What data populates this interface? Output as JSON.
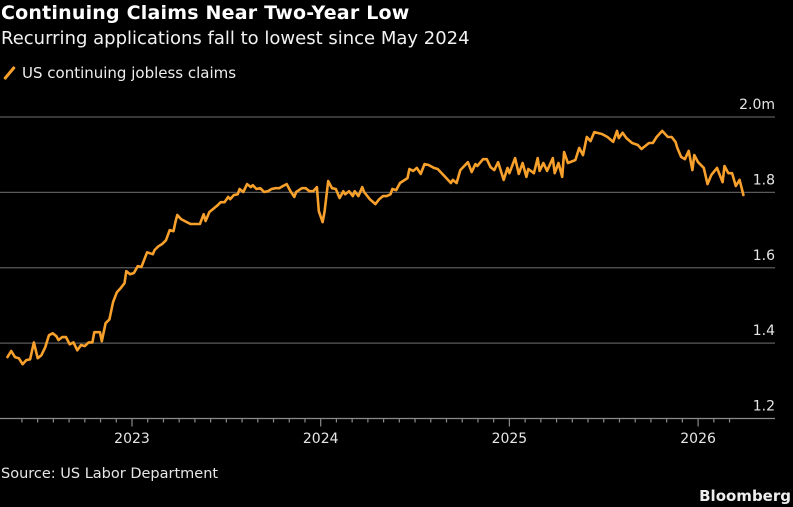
{
  "chart_data": {
    "type": "line",
    "title": "Continuing Claims Near Two-Year Low",
    "subtitle": "Recurring applications fall to lowest since May 2024",
    "xlabel": "",
    "ylabel": "",
    "ylim": [
      1.2,
      2.0
    ],
    "xlim": [
      2022.33,
      2026.4
    ],
    "yticks": [
      1.2,
      1.4,
      1.6,
      1.8,
      2.0
    ],
    "ytick_labels": [
      "1.2",
      "1.4",
      "1.6",
      "1.8",
      "2.0m"
    ],
    "xticks": [
      2023,
      2024,
      2025,
      2026
    ],
    "xtick_labels": [
      "2023",
      "2024",
      "2025",
      "2026"
    ],
    "grid": true,
    "legend_position": "top-left",
    "series": [
      {
        "name": "US continuing jobless claims",
        "color": "#f7a02c",
        "x": [
          2022.34,
          2022.36,
          2022.38,
          2022.4,
          2022.42,
          2022.44,
          2022.46,
          2022.48,
          2022.5,
          2022.52,
          2022.54,
          2022.56,
          2022.58,
          2022.6,
          2022.61,
          2022.63,
          2022.65,
          2022.67,
          2022.69,
          2022.71,
          2022.73,
          2022.75,
          2022.77,
          2022.79,
          2022.8,
          2022.83,
          2022.84,
          2022.86,
          2022.88,
          2022.9,
          2022.92,
          2022.94,
          2022.96,
          2022.97,
          2022.99,
          2023.01,
          2023.03,
          2023.05,
          2023.07,
          2023.08,
          2023.11,
          2023.12,
          2023.14,
          2023.16,
          2023.18,
          2023.2,
          2023.22,
          2023.23,
          2023.24,
          2023.26,
          2023.29,
          2023.31,
          2023.32,
          2023.34,
          2023.36,
          2023.38,
          2023.39,
          2023.41,
          2023.43,
          2023.45,
          2023.47,
          2023.49,
          2023.51,
          2023.52,
          2023.54,
          2023.56,
          2023.57,
          2023.59,
          2023.61,
          2023.63,
          2023.64,
          2023.66,
          2023.68,
          2023.7,
          2023.72,
          2023.74,
          2023.76,
          2023.78,
          2023.8,
          2023.82,
          2023.84,
          2023.86,
          2023.87,
          2023.9,
          2023.92,
          2023.94,
          2023.96,
          2023.98,
          2023.99,
          2024.01,
          2024.02,
          2024.04,
          2024.06,
          2024.08,
          2024.1,
          2024.12,
          2024.13,
          2024.15,
          2024.17,
          2024.18,
          2024.2,
          2024.22,
          2024.23,
          2024.26,
          2024.29,
          2024.31,
          2024.33,
          2024.35,
          2024.37,
          2024.38,
          2024.4,
          2024.42,
          2024.46,
          2024.47,
          2024.49,
          2024.51,
          2024.53,
          2024.55,
          2024.57,
          2024.6,
          2024.62,
          2024.65,
          2024.69,
          2024.7,
          2024.72,
          2024.74,
          2024.78,
          2024.8,
          2024.82,
          2024.83,
          2024.86,
          2024.88,
          2024.9,
          2024.92,
          2024.94,
          2024.97,
          2024.99,
          2025.0,
          2025.03,
          2025.05,
          2025.07,
          2025.09,
          2025.1,
          2025.13,
          2025.15,
          2025.16,
          2025.18,
          2025.2,
          2025.23,
          2025.24,
          2025.26,
          2025.28,
          2025.29,
          2025.31,
          2025.35,
          2025.37,
          2025.39,
          2025.41,
          2025.43,
          2025.45,
          2025.49,
          2025.52,
          2025.55,
          2025.57,
          2025.58,
          2025.6,
          2025.62,
          2025.65,
          2025.68,
          2025.7,
          2025.74,
          2025.76,
          2025.78,
          2025.81,
          2025.84,
          2025.86,
          2025.88,
          2025.89,
          2025.91,
          2025.93,
          2025.95,
          2025.97,
          2025.98,
          2026.0,
          2026.03,
          2026.05,
          2026.07,
          2026.1,
          2026.13,
          2026.14,
          2026.16,
          2026.18,
          2026.2,
          2026.22,
          2026.24
        ],
        "y": [
          1.363,
          1.379,
          1.363,
          1.36,
          1.344,
          1.355,
          1.357,
          1.402,
          1.36,
          1.368,
          1.389,
          1.421,
          1.426,
          1.418,
          1.408,
          1.416,
          1.416,
          1.397,
          1.402,
          1.381,
          1.395,
          1.392,
          1.402,
          1.402,
          1.429,
          1.429,
          1.405,
          1.453,
          1.463,
          1.509,
          1.535,
          1.546,
          1.559,
          1.591,
          1.583,
          1.586,
          1.604,
          1.602,
          1.628,
          1.641,
          1.636,
          1.647,
          1.657,
          1.663,
          1.673,
          1.7,
          1.697,
          1.721,
          1.74,
          1.729,
          1.721,
          1.716,
          1.716,
          1.716,
          1.716,
          1.742,
          1.724,
          1.748,
          1.756,
          1.764,
          1.774,
          1.774,
          1.788,
          1.782,
          1.793,
          1.795,
          1.809,
          1.801,
          1.822,
          1.814,
          1.819,
          1.809,
          1.811,
          1.801,
          1.803,
          1.809,
          1.811,
          1.811,
          1.817,
          1.822,
          1.803,
          1.788,
          1.801,
          1.811,
          1.811,
          1.803,
          1.803,
          1.814,
          1.75,
          1.721,
          1.748,
          1.83,
          1.811,
          1.809,
          1.785,
          1.803,
          1.795,
          1.803,
          1.79,
          1.803,
          1.79,
          1.814,
          1.801,
          1.782,
          1.769,
          1.782,
          1.79,
          1.79,
          1.795,
          1.809,
          1.806,
          1.825,
          1.838,
          1.862,
          1.857,
          1.865,
          1.849,
          1.875,
          1.873,
          1.865,
          1.862,
          1.846,
          1.825,
          1.833,
          1.825,
          1.859,
          1.88,
          1.854,
          1.875,
          1.87,
          1.888,
          1.888,
          1.867,
          1.859,
          1.88,
          1.833,
          1.865,
          1.851,
          1.891,
          1.849,
          1.878,
          1.841,
          1.862,
          1.851,
          1.891,
          1.857,
          1.878,
          1.857,
          1.891,
          1.851,
          1.878,
          1.841,
          1.907,
          1.878,
          1.886,
          1.918,
          1.899,
          1.947,
          1.936,
          1.96,
          1.955,
          1.947,
          1.934,
          1.963,
          1.944,
          1.958,
          1.944,
          1.931,
          1.926,
          1.915,
          1.931,
          1.931,
          1.947,
          1.963,
          1.947,
          1.947,
          1.934,
          1.918,
          1.894,
          1.888,
          1.91,
          1.859,
          1.899,
          1.88,
          1.865,
          1.822,
          1.846,
          1.865,
          1.827,
          1.87,
          1.851,
          1.851,
          1.817,
          1.833,
          1.793
        ]
      }
    ],
    "source": "Source: US Labor Department",
    "brand": "Bloomberg"
  }
}
